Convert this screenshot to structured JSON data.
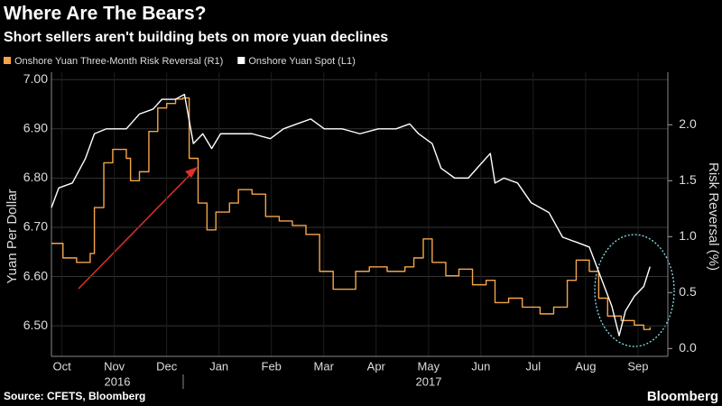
{
  "chart_data": {
    "type": "line",
    "title": "Where Are The Bears?",
    "subtitle": "Short sellers aren't building bets on more yuan declines",
    "source": "Source: CFETS, Bloomberg",
    "brand": "Bloomberg",
    "y_label": "Yuan Per Dollar",
    "y2_label": "Risk Reversal (%)",
    "year_labels": [
      "2016",
      "2017"
    ],
    "grid": true,
    "xlim": [
      0.3,
      12.07
    ],
    "xticks": [
      {
        "value": 0.5,
        "label": "Oct"
      },
      {
        "value": 1.5,
        "label": "Nov"
      },
      {
        "value": 2.5,
        "label": "Dec"
      },
      {
        "value": 3.5,
        "label": "Jan"
      },
      {
        "value": 4.5,
        "label": "Feb"
      },
      {
        "value": 5.5,
        "label": "Mar"
      },
      {
        "value": 6.5,
        "label": "Apr"
      },
      {
        "value": 7.5,
        "label": "May"
      },
      {
        "value": 8.5,
        "label": "Jun"
      },
      {
        "value": 9.5,
        "label": "Jul"
      },
      {
        "value": 10.5,
        "label": "Aug"
      },
      {
        "value": 11.5,
        "label": "Sep"
      }
    ],
    "ylim": [
      6.438,
      7.015
    ],
    "yticks": [
      {
        "value": 6.5,
        "label": "6.50"
      },
      {
        "value": 6.6,
        "label": "6.60"
      },
      {
        "value": 6.7,
        "label": "6.70"
      },
      {
        "value": 6.8,
        "label": "6.80"
      },
      {
        "value": 6.9,
        "label": "6.90"
      },
      {
        "value": 7.0,
        "label": "7.00"
      }
    ],
    "y2lim": [
      -0.07,
      2.47
    ],
    "y2ticks": [
      {
        "value": 0,
        "label": "0.0"
      },
      {
        "value": 0.5,
        "label": "0.5"
      },
      {
        "value": 1,
        "label": "1.0"
      },
      {
        "value": 1.5,
        "label": "1.5"
      },
      {
        "value": 2,
        "label": "2.0"
      }
    ],
    "series": [
      {
        "name": "Onshore Yuan Three-Month Risk Reversal (R1)",
        "color": "#f4a54a",
        "axis": "y2",
        "step": true,
        "x": [
          0.3,
          0.52,
          0.78,
          1.04,
          1.12,
          1.3,
          1.47,
          1.73,
          1.81,
          1.98,
          2.16,
          2.33,
          2.5,
          2.67,
          2.81,
          2.93,
          3.1,
          3.27,
          3.44,
          3.7,
          3.87,
          4.13,
          4.39,
          4.65,
          4.9,
          5.16,
          5.42,
          5.68,
          5.94,
          6.11,
          6.37,
          6.71,
          7.05,
          7.22,
          7.4,
          7.57,
          7.83,
          8.08,
          8.34,
          8.6,
          8.77,
          9.03,
          9.29,
          9.63,
          9.89,
          10.15,
          10.32,
          10.57,
          10.75,
          10.92,
          11.18,
          11.43,
          11.61,
          11.73
        ],
        "values": [
          0.94,
          0.81,
          0.77,
          0.85,
          1.26,
          1.66,
          1.78,
          1.7,
          1.5,
          1.58,
          1.94,
          2.15,
          2.19,
          2.23,
          2.24,
          1.7,
          1.3,
          1.06,
          1.22,
          1.3,
          1.42,
          1.38,
          1.18,
          1.14,
          1.1,
          1.02,
          0.69,
          0.53,
          0.53,
          0.69,
          0.73,
          0.69,
          0.73,
          0.81,
          0.98,
          0.77,
          0.65,
          0.71,
          0.57,
          0.61,
          0.41,
          0.45,
          0.37,
          0.31,
          0.37,
          0.61,
          0.79,
          0.69,
          0.45,
          0.29,
          0.25,
          0.21,
          0.17,
          0.19
        ]
      },
      {
        "name": "Onshore Yuan Spot (L1)",
        "color": "#ffffff",
        "axis": "y",
        "x": [
          0.3,
          0.44,
          0.7,
          0.95,
          1.12,
          1.35,
          1.55,
          1.73,
          1.98,
          2.24,
          2.41,
          2.67,
          2.84,
          3.01,
          3.19,
          3.36,
          3.53,
          3.79,
          4.13,
          4.48,
          4.73,
          4.99,
          5.25,
          5.51,
          5.85,
          6.19,
          6.54,
          6.88,
          7.14,
          7.31,
          7.57,
          7.74,
          8.0,
          8.26,
          8.51,
          8.68,
          8.77,
          8.94,
          9.2,
          9.46,
          9.8,
          10.06,
          10.32,
          10.57,
          10.75,
          11.0,
          11.14,
          11.26,
          11.43,
          11.61,
          11.73
        ],
        "values": [
          6.74,
          6.78,
          6.79,
          6.84,
          6.89,
          6.9,
          6.9,
          6.9,
          6.93,
          6.94,
          6.96,
          6.96,
          6.97,
          6.87,
          6.89,
          6.86,
          6.89,
          6.89,
          6.89,
          6.88,
          6.9,
          6.91,
          6.92,
          6.9,
          6.9,
          6.89,
          6.9,
          6.9,
          6.91,
          6.89,
          6.87,
          6.82,
          6.8,
          6.8,
          6.83,
          6.85,
          6.79,
          6.8,
          6.79,
          6.75,
          6.73,
          6.68,
          6.67,
          6.66,
          6.61,
          6.54,
          6.48,
          6.53,
          6.56,
          6.58,
          6.62
        ]
      }
    ]
  }
}
